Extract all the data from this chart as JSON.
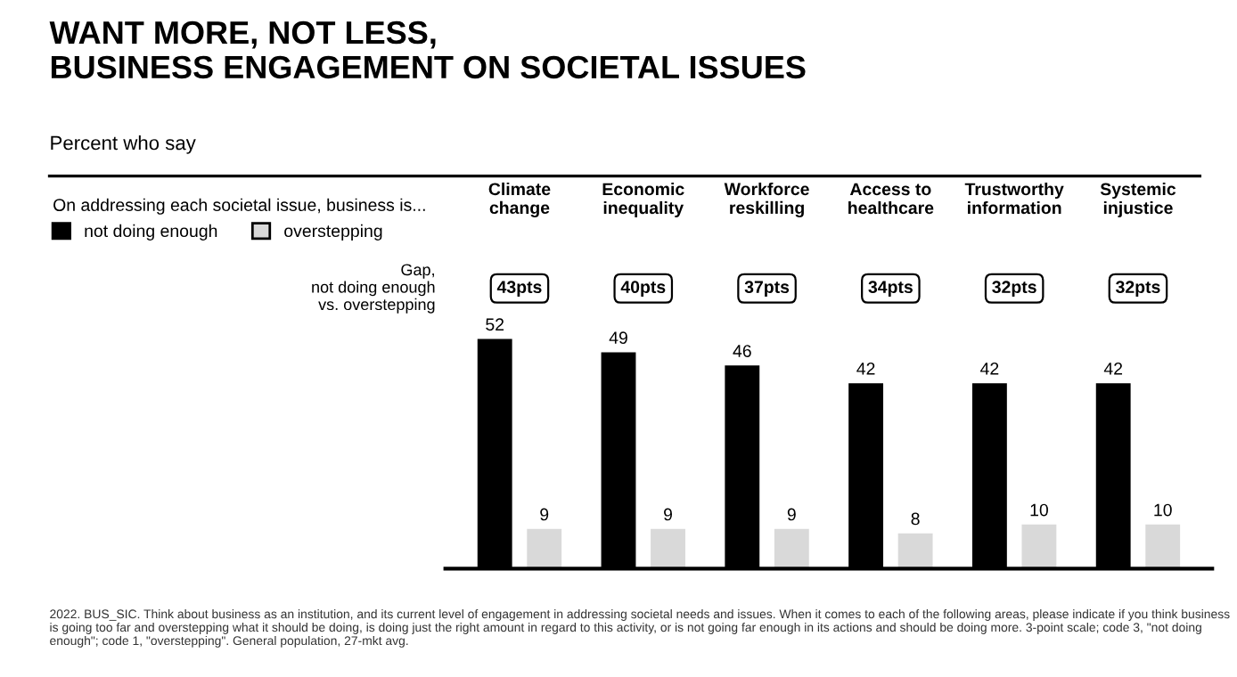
{
  "chart_data": {
    "type": "bar",
    "title": "WANT MORE, NOT LESS,\nBUSINESS ENGAGEMENT ON SOCIETAL ISSUES",
    "subtitle": "Percent who say",
    "legend_title": "On addressing each societal issue, business is...",
    "categories": [
      "Climate change",
      "Economic inequality",
      "Workforce reskilling",
      "Access to healthcare",
      "Trustworthy information",
      "Systemic injustice"
    ],
    "series": [
      {
        "name": "not doing enough",
        "color": "#000000",
        "values": [
          52,
          49,
          46,
          42,
          42,
          42
        ]
      },
      {
        "name": "overstepping",
        "color": "#d9d9d9",
        "values": [
          9,
          9,
          9,
          8,
          10,
          10
        ]
      }
    ],
    "data_labels": true,
    "legend": "top left",
    "grid": false,
    "annotations": [
      "Gap,\nnot doing enough\nvs. overstepping",
      "43pts",
      "40pts",
      "37pts",
      "34pts",
      "32pts",
      "32pts",
      "2022. BUS_SIC. Think about business as an institution, and its current level of engagement in addressing societal needs and issues. When it comes to each of the following areas, please indicate if you think business is going too far and overstepping what it should be doing, is doing just the right amount in regard to this activity, or is not going far enough in its actions and should be doing more. 3-point scale; code 3, \"not doing enough\"; code 1, \"overstepping\". General population, 27-mkt avg."
    ]
  }
}
